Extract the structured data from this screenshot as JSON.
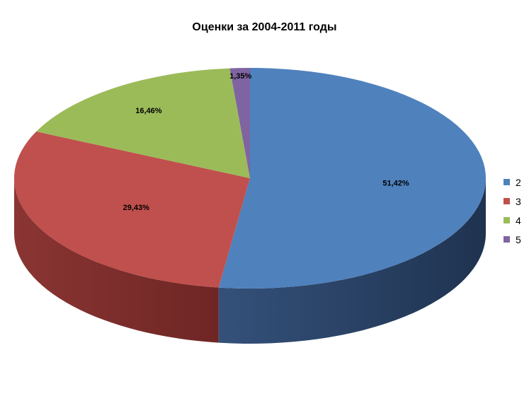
{
  "chart_data": {
    "type": "pie",
    "title": "Оценки за 2004-2011 годы",
    "categories": [
      "2",
      "3",
      "4",
      "5"
    ],
    "values": [
      51.42,
      29.43,
      16.46,
      1.35
    ],
    "value_labels": [
      "51,42%",
      "29,43%",
      "16,46%",
      "1,35%"
    ],
    "colors": [
      "#4F81BD",
      "#C0504D",
      "#9BBB59",
      "#8064A2"
    ],
    "legend_position": "right",
    "style": "3d"
  }
}
